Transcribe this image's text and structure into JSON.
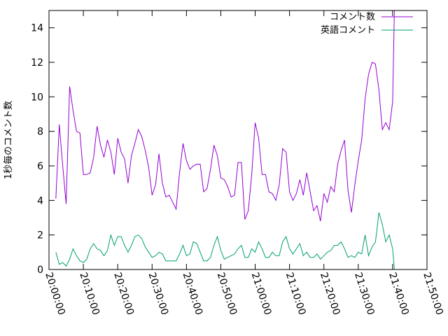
{
  "chart_data": {
    "type": "line",
    "title": "",
    "xlabel": "",
    "ylabel": "1秒毎のコメント数",
    "xlim": [
      "20:00:00",
      "21:50:00"
    ],
    "ylim": [
      0,
      15
    ],
    "x_ticks": [
      "20:00:00",
      "20:10:00",
      "20:20:00",
      "20:30:00",
      "20:40:00",
      "20:50:00",
      "21:00:00",
      "21:10:00",
      "21:20:00",
      "21:30:00",
      "21:40:00",
      "21:50:00"
    ],
    "y_ticks": [
      0,
      2,
      4,
      6,
      8,
      10,
      12,
      14
    ],
    "legend_position": "top-right",
    "grid": false,
    "series": [
      {
        "name": "コメント数",
        "color": "#9400d3",
        "points": [
          [
            "20:02:00",
            4.1
          ],
          [
            "20:03:00",
            8.4
          ],
          [
            "20:04:00",
            6.0
          ],
          [
            "20:05:00",
            3.8
          ],
          [
            "20:06:00",
            10.6
          ],
          [
            "20:07:00",
            9.2
          ],
          [
            "20:08:00",
            8.0
          ],
          [
            "20:09:00",
            7.9
          ],
          [
            "20:10:00",
            5.5
          ],
          [
            "20:11:00",
            5.5
          ],
          [
            "20:12:00",
            5.6
          ],
          [
            "20:13:00",
            6.5
          ],
          [
            "20:14:00",
            8.3
          ],
          [
            "20:15:00",
            7.2
          ],
          [
            "20:16:00",
            6.5
          ],
          [
            "20:17:00",
            7.5
          ],
          [
            "20:18:00",
            6.8
          ],
          [
            "20:19:00",
            5.5
          ],
          [
            "20:20:00",
            7.6
          ],
          [
            "20:21:00",
            6.8
          ],
          [
            "20:22:00",
            6.4
          ],
          [
            "20:23:00",
            5.0
          ],
          [
            "20:24:00",
            6.6
          ],
          [
            "20:25:00",
            7.3
          ],
          [
            "20:26:00",
            8.1
          ],
          [
            "20:27:00",
            7.7
          ],
          [
            "20:28:00",
            6.9
          ],
          [
            "20:29:00",
            5.9
          ],
          [
            "20:30:00",
            4.3
          ],
          [
            "20:31:00",
            4.9
          ],
          [
            "20:32:00",
            6.7
          ],
          [
            "20:33:00",
            5.0
          ],
          [
            "20:34:00",
            4.2
          ],
          [
            "20:35:00",
            4.3
          ],
          [
            "20:36:00",
            3.9
          ],
          [
            "20:37:00",
            3.5
          ],
          [
            "20:38:00",
            5.6
          ],
          [
            "20:39:00",
            7.3
          ],
          [
            "20:40:00",
            6.3
          ],
          [
            "20:41:00",
            5.8
          ],
          [
            "20:42:00",
            6.0
          ],
          [
            "20:43:00",
            6.1
          ],
          [
            "20:44:00",
            6.1
          ],
          [
            "20:45:00",
            4.5
          ],
          [
            "20:46:00",
            4.7
          ],
          [
            "20:47:00",
            5.8
          ],
          [
            "20:48:00",
            7.2
          ],
          [
            "20:49:00",
            6.6
          ],
          [
            "20:50:00",
            5.3
          ],
          [
            "20:51:00",
            5.2
          ],
          [
            "20:52:00",
            4.8
          ],
          [
            "20:53:00",
            4.2
          ],
          [
            "20:54:00",
            4.3
          ],
          [
            "20:55:00",
            6.2
          ],
          [
            "20:56:00",
            6.2
          ],
          [
            "20:57:00",
            2.9
          ],
          [
            "20:58:00",
            3.4
          ],
          [
            "20:59:00",
            5.5
          ],
          [
            "21:00:00",
            8.5
          ],
          [
            "21:01:00",
            7.6
          ],
          [
            "21:02:00",
            5.5
          ],
          [
            "21:03:00",
            5.5
          ],
          [
            "21:04:00",
            4.5
          ],
          [
            "21:05:00",
            4.4
          ],
          [
            "21:06:00",
            4.0
          ],
          [
            "21:07:00",
            4.9
          ],
          [
            "21:08:00",
            7.0
          ],
          [
            "21:09:00",
            6.8
          ],
          [
            "21:10:00",
            4.5
          ],
          [
            "21:11:00",
            4.0
          ],
          [
            "21:12:00",
            4.4
          ],
          [
            "21:13:00",
            5.2
          ],
          [
            "21:14:00",
            4.3
          ],
          [
            "21:15:00",
            5.6
          ],
          [
            "21:16:00",
            4.5
          ],
          [
            "21:17:00",
            3.4
          ],
          [
            "21:18:00",
            3.7
          ],
          [
            "21:19:00",
            2.8
          ],
          [
            "21:20:00",
            4.4
          ],
          [
            "21:21:00",
            3.9
          ],
          [
            "21:22:00",
            4.8
          ],
          [
            "21:23:00",
            4.5
          ],
          [
            "21:24:00",
            6.1
          ],
          [
            "21:25:00",
            6.9
          ],
          [
            "21:26:00",
            7.5
          ],
          [
            "21:27:00",
            4.6
          ],
          [
            "21:28:00",
            3.3
          ],
          [
            "21:29:00",
            4.9
          ],
          [
            "21:30:00",
            6.3
          ],
          [
            "21:31:00",
            7.5
          ],
          [
            "21:32:00",
            9.9
          ],
          [
            "21:33:00",
            11.3
          ],
          [
            "21:34:00",
            12.0
          ],
          [
            "21:35:00",
            11.9
          ],
          [
            "21:36:00",
            10.4
          ],
          [
            "21:37:00",
            8.1
          ],
          [
            "21:38:00",
            8.5
          ],
          [
            "21:39:00",
            8.1
          ],
          [
            "21:40:00",
            9.7
          ],
          [
            "21:40:30",
            15.0
          ]
        ]
      },
      {
        "name": "英語コメント",
        "color": "#009e73",
        "points": [
          [
            "20:02:00",
            1.0
          ],
          [
            "20:03:00",
            0.3
          ],
          [
            "20:04:00",
            0.4
          ],
          [
            "20:05:00",
            0.2
          ],
          [
            "20:06:00",
            0.6
          ],
          [
            "20:07:00",
            1.2
          ],
          [
            "20:08:00",
            0.8
          ],
          [
            "20:09:00",
            0.5
          ],
          [
            "20:10:00",
            0.4
          ],
          [
            "20:11:00",
            0.6
          ],
          [
            "20:12:00",
            1.2
          ],
          [
            "20:13:00",
            1.5
          ],
          [
            "20:14:00",
            1.2
          ],
          [
            "20:15:00",
            1.1
          ],
          [
            "20:16:00",
            0.8
          ],
          [
            "20:17:00",
            1.1
          ],
          [
            "20:18:00",
            2.0
          ],
          [
            "20:19:00",
            1.4
          ],
          [
            "20:20:00",
            1.9
          ],
          [
            "20:21:00",
            1.9
          ],
          [
            "20:22:00",
            1.4
          ],
          [
            "20:23:00",
            1.0
          ],
          [
            "20:24:00",
            1.4
          ],
          [
            "20:25:00",
            1.9
          ],
          [
            "20:26:00",
            2.0
          ],
          [
            "20:27:00",
            1.8
          ],
          [
            "20:28:00",
            1.3
          ],
          [
            "20:29:00",
            1.0
          ],
          [
            "20:30:00",
            0.7
          ],
          [
            "20:31:00",
            0.8
          ],
          [
            "20:32:00",
            1.0
          ],
          [
            "20:33:00",
            0.9
          ],
          [
            "20:34:00",
            0.5
          ],
          [
            "20:35:00",
            0.5
          ],
          [
            "20:36:00",
            0.5
          ],
          [
            "20:37:00",
            0.5
          ],
          [
            "20:38:00",
            0.9
          ],
          [
            "20:39:00",
            1.4
          ],
          [
            "20:40:00",
            0.8
          ],
          [
            "20:41:00",
            0.9
          ],
          [
            "20:42:00",
            1.6
          ],
          [
            "20:43:00",
            1.5
          ],
          [
            "20:44:00",
            1.0
          ],
          [
            "20:45:00",
            0.5
          ],
          [
            "20:46:00",
            0.5
          ],
          [
            "20:47:00",
            0.7
          ],
          [
            "20:48:00",
            1.4
          ],
          [
            "20:49:00",
            1.9
          ],
          [
            "20:50:00",
            1.1
          ],
          [
            "20:51:00",
            0.6
          ],
          [
            "20:52:00",
            0.7
          ],
          [
            "20:53:00",
            0.8
          ],
          [
            "20:54:00",
            0.9
          ],
          [
            "20:55:00",
            1.2
          ],
          [
            "20:56:00",
            1.4
          ],
          [
            "20:57:00",
            0.7
          ],
          [
            "20:58:00",
            0.7
          ],
          [
            "20:59:00",
            1.2
          ],
          [
            "21:00:00",
            1.0
          ],
          [
            "21:01:00",
            1.6
          ],
          [
            "21:02:00",
            1.2
          ],
          [
            "21:03:00",
            0.7
          ],
          [
            "21:04:00",
            0.7
          ],
          [
            "21:05:00",
            1.0
          ],
          [
            "21:06:00",
            0.8
          ],
          [
            "21:07:00",
            0.8
          ],
          [
            "21:08:00",
            1.6
          ],
          [
            "21:09:00",
            1.9
          ],
          [
            "21:10:00",
            1.2
          ],
          [
            "21:11:00",
            0.9
          ],
          [
            "21:12:00",
            1.2
          ],
          [
            "21:13:00",
            1.5
          ],
          [
            "21:14:00",
            0.8
          ],
          [
            "21:15:00",
            1.0
          ],
          [
            "21:16:00",
            0.7
          ],
          [
            "21:17:00",
            0.7
          ],
          [
            "21:18:00",
            0.9
          ],
          [
            "21:19:00",
            0.6
          ],
          [
            "21:20:00",
            0.8
          ],
          [
            "21:21:00",
            1.0
          ],
          [
            "21:22:00",
            1.1
          ],
          [
            "21:23:00",
            1.4
          ],
          [
            "21:24:00",
            1.4
          ],
          [
            "21:25:00",
            1.6
          ],
          [
            "21:26:00",
            1.2
          ],
          [
            "21:27:00",
            0.7
          ],
          [
            "21:28:00",
            0.8
          ],
          [
            "21:29:00",
            0.7
          ],
          [
            "21:30:00",
            1.0
          ],
          [
            "21:31:00",
            0.9
          ],
          [
            "21:32:00",
            2.0
          ],
          [
            "21:33:00",
            0.8
          ],
          [
            "21:34:00",
            1.3
          ],
          [
            "21:35:00",
            1.6
          ],
          [
            "21:36:00",
            3.3
          ],
          [
            "21:37:00",
            2.6
          ],
          [
            "21:38:00",
            1.6
          ],
          [
            "21:39:00",
            2.0
          ],
          [
            "21:40:00",
            1.2
          ],
          [
            "21:40:30",
            0.0
          ]
        ]
      }
    ]
  }
}
